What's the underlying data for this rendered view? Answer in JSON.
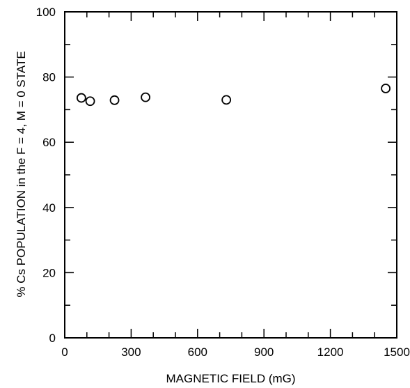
{
  "chart_data": {
    "type": "scatter",
    "title": "",
    "xlabel": "MAGNETIC FIELD (mG)",
    "ylabel": "% Cs POPULATION in the F = 4, M = 0 STATE",
    "xlim": [
      0,
      1500
    ],
    "ylim": [
      0,
      100
    ],
    "x_ticks": [
      0,
      300,
      600,
      900,
      1200,
      1500
    ],
    "x_tick_labels": [
      "0",
      "300",
      "600",
      "900",
      "1200",
      "1500"
    ],
    "y_ticks": [
      0,
      20,
      40,
      60,
      80,
      100
    ],
    "y_tick_labels": [
      "0",
      "20",
      "40",
      "60",
      "80",
      "100"
    ],
    "x_minor_step": 100,
    "y_minor_step": 10,
    "grid": false,
    "marker": "open-circle",
    "series": [
      {
        "x": [
          75,
          115,
          225,
          365,
          730,
          1450
        ],
        "y": [
          73.6,
          72.6,
          72.9,
          73.8,
          73.0,
          76.5
        ]
      }
    ]
  }
}
